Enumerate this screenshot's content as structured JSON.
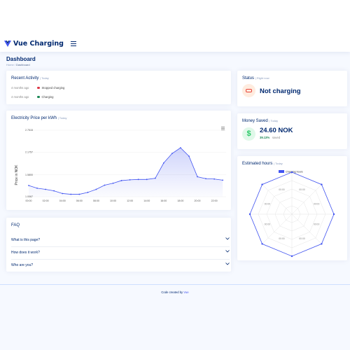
{
  "header": {
    "brand": "Vue Charging",
    "accent_color": "#4154f1",
    "menu_icon": "hamburger-icon"
  },
  "page": {
    "title": "Dashboard",
    "breadcrumb": [
      "Home",
      "Dashboard"
    ]
  },
  "recent_activity": {
    "title": "Recent Activity",
    "subtitle": "| Today",
    "items": [
      {
        "ago": "4 months ago",
        "status_color": "#dc3545",
        "text": "Stopped charging"
      },
      {
        "ago": "4 months ago",
        "status_color": "#198754",
        "text": "Charging"
      }
    ]
  },
  "price_chart": {
    "title": "Electricity Price per kWh",
    "subtitle": "| Today"
  },
  "chart_data": [
    {
      "type": "area",
      "ylabel": "Price in NOK",
      "y_ticks": [
        "2.7515",
        "2.1757",
        "1.5800",
        "1.0067"
      ],
      "x_ticks": [
        "00:00",
        "02:00",
        "04:00",
        "06:00",
        "08:00",
        "10:00",
        "12:00",
        "14:00",
        "16:00",
        "18:00",
        "20:00",
        "22:00"
      ],
      "ylim": [
        1.0067,
        2.7515
      ],
      "x": [
        0,
        1,
        2,
        3,
        4,
        5,
        6,
        7,
        8,
        9,
        10,
        11,
        12,
        13,
        14,
        15,
        16,
        17,
        18,
        19,
        20,
        21,
        22,
        23
      ],
      "series": [
        {
          "values": [
            1.3,
            1.23,
            1.2,
            1.16,
            1.09,
            1.07,
            1.07,
            1.12,
            1.2,
            1.31,
            1.36,
            1.43,
            1.45,
            1.46,
            1.46,
            1.49,
            1.89,
            2.14,
            2.29,
            2.07,
            1.53,
            1.48,
            1.47,
            1.44
          ]
        }
      ],
      "line_color": "#4154f1"
    },
    {
      "type": "radar",
      "series": [
        {
          "name": "Charging hours",
          "values": [
            0,
            0,
            0,
            0,
            0,
            0,
            0,
            0
          ]
        }
      ],
      "axis_labels": [
        "00:00",
        "00:00",
        "00:00",
        "00:00",
        "00:00",
        "00:00",
        "00:00",
        "00:00"
      ]
    }
  ],
  "status": {
    "title": "Status",
    "subtitle": "| Right now",
    "value": "Not charging",
    "icon": "plug-icon"
  },
  "money": {
    "title": "Money Saved",
    "subtitle": "| Today",
    "value": "24.60 NOK",
    "percent": "39.13%",
    "saved_label": "saved",
    "icon": "dollar-icon"
  },
  "estimated": {
    "title": "Estimated hours",
    "subtitle": "| Today"
  },
  "faq": {
    "title": "FAQ",
    "items": [
      "What is this page?",
      "How does it work?",
      "Who are you?"
    ]
  },
  "footer": {
    "prefix": "Code created by ",
    "link": "Vue"
  }
}
